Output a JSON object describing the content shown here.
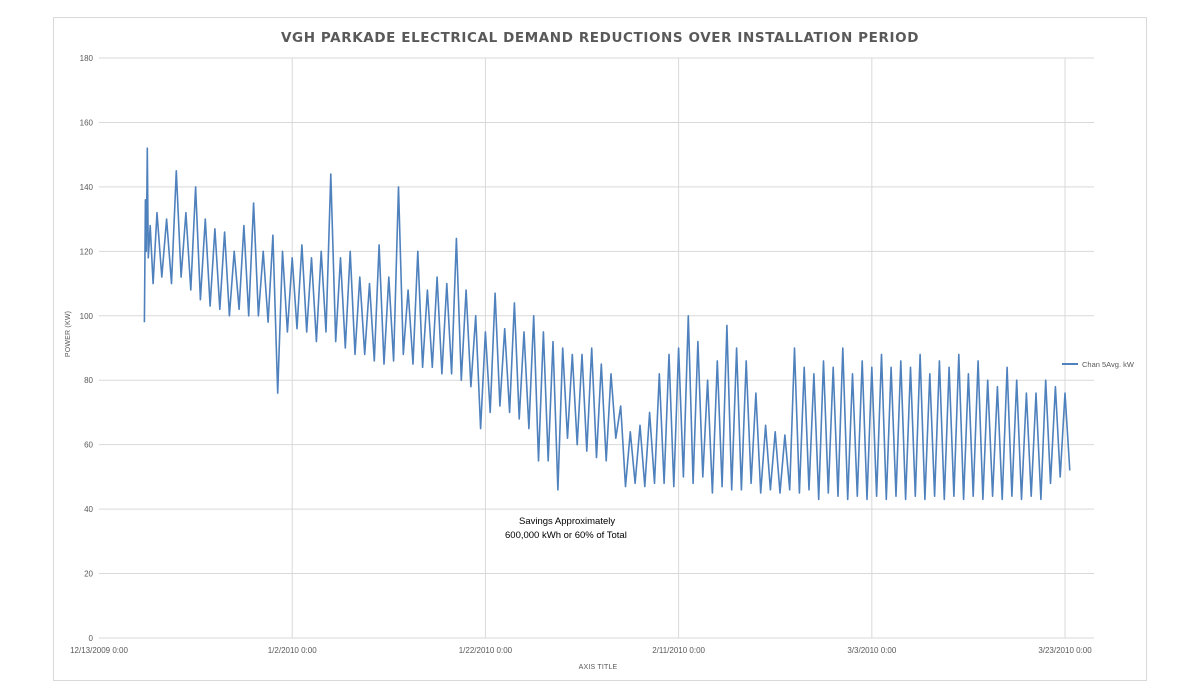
{
  "chart_data": {
    "type": "line",
    "title": "VGH PARKADE ELECTRICAL DEMAND REDUCTIONS OVER INSTALLATION PERIOD",
    "xlabel": "AXIS TITLE",
    "ylabel": "POWER (KW)",
    "x_ticks": [
      "12/13/2009 0:00",
      "1/2/2010 0:00",
      "1/22/2010 0:00",
      "2/11/2010 0:00",
      "3/3/2010 0:00",
      "3/23/2010 0:00"
    ],
    "x_tick_days": [
      0,
      20,
      40,
      60,
      80,
      100
    ],
    "xlim_days": [
      0,
      103
    ],
    "ylim": [
      0,
      180
    ],
    "y_ticks": [
      0,
      20,
      40,
      60,
      80,
      100,
      120,
      140,
      160,
      180
    ],
    "grid": true,
    "legend_position": "right",
    "series": [
      {
        "name": "Chan 5Avg. kW",
        "color": "#4f81bd",
        "points_day_kw": [
          [
            4.7,
            98
          ],
          [
            4.8,
            136
          ],
          [
            4.9,
            120
          ],
          [
            5.0,
            152
          ],
          [
            5.1,
            118
          ],
          [
            5.3,
            128
          ],
          [
            5.6,
            110
          ],
          [
            6.0,
            132
          ],
          [
            6.5,
            112
          ],
          [
            7.0,
            130
          ],
          [
            7.5,
            110
          ],
          [
            8.0,
            145
          ],
          [
            8.5,
            112
          ],
          [
            9.0,
            132
          ],
          [
            9.5,
            108
          ],
          [
            10.0,
            140
          ],
          [
            10.5,
            105
          ],
          [
            11.0,
            130
          ],
          [
            11.5,
            103
          ],
          [
            12.0,
            127
          ],
          [
            12.5,
            102
          ],
          [
            13.0,
            126
          ],
          [
            13.5,
            100
          ],
          [
            14.0,
            120
          ],
          [
            14.5,
            102
          ],
          [
            15.0,
            128
          ],
          [
            15.5,
            100
          ],
          [
            16.0,
            135
          ],
          [
            16.5,
            100
          ],
          [
            17.0,
            120
          ],
          [
            17.5,
            98
          ],
          [
            18.0,
            125
          ],
          [
            18.5,
            76
          ],
          [
            19.0,
            120
          ],
          [
            19.5,
            95
          ],
          [
            20.0,
            118
          ],
          [
            20.5,
            96
          ],
          [
            21.0,
            122
          ],
          [
            21.5,
            95
          ],
          [
            22.0,
            118
          ],
          [
            22.5,
            92
          ],
          [
            23.0,
            120
          ],
          [
            23.5,
            95
          ],
          [
            24.0,
            144
          ],
          [
            24.5,
            92
          ],
          [
            25.0,
            118
          ],
          [
            25.5,
            90
          ],
          [
            26.0,
            120
          ],
          [
            26.5,
            88
          ],
          [
            27.0,
            112
          ],
          [
            27.5,
            88
          ],
          [
            28.0,
            110
          ],
          [
            28.5,
            86
          ],
          [
            29.0,
            122
          ],
          [
            29.5,
            85
          ],
          [
            30.0,
            112
          ],
          [
            30.5,
            86
          ],
          [
            31.0,
            140
          ],
          [
            31.5,
            88
          ],
          [
            32.0,
            108
          ],
          [
            32.5,
            85
          ],
          [
            33.0,
            120
          ],
          [
            33.5,
            84
          ],
          [
            34.0,
            108
          ],
          [
            34.5,
            84
          ],
          [
            35.0,
            112
          ],
          [
            35.5,
            82
          ],
          [
            36.0,
            110
          ],
          [
            36.5,
            82
          ],
          [
            37.0,
            124
          ],
          [
            37.5,
            80
          ],
          [
            38.0,
            108
          ],
          [
            38.5,
            78
          ],
          [
            39.0,
            100
          ],
          [
            39.5,
            65
          ],
          [
            40.0,
            95
          ],
          [
            40.5,
            70
          ],
          [
            41.0,
            107
          ],
          [
            41.5,
            72
          ],
          [
            42.0,
            96
          ],
          [
            42.5,
            70
          ],
          [
            43.0,
            104
          ],
          [
            43.5,
            68
          ],
          [
            44.0,
            95
          ],
          [
            44.5,
            65
          ],
          [
            45.0,
            100
          ],
          [
            45.5,
            55
          ],
          [
            46.0,
            95
          ],
          [
            46.5,
            55
          ],
          [
            47.0,
            92
          ],
          [
            47.5,
            46
          ],
          [
            48.0,
            90
          ],
          [
            48.5,
            62
          ],
          [
            49.0,
            88
          ],
          [
            49.5,
            60
          ],
          [
            50.0,
            88
          ],
          [
            50.5,
            58
          ],
          [
            51.0,
            90
          ],
          [
            51.5,
            56
          ],
          [
            52.0,
            85
          ],
          [
            52.5,
            55
          ],
          [
            53.0,
            82
          ],
          [
            53.5,
            62
          ],
          [
            54.0,
            72
          ],
          [
            54.5,
            47
          ],
          [
            55.0,
            64
          ],
          [
            55.5,
            48
          ],
          [
            56.0,
            66
          ],
          [
            56.5,
            47
          ],
          [
            57.0,
            70
          ],
          [
            57.5,
            48
          ],
          [
            58.0,
            82
          ],
          [
            58.5,
            48
          ],
          [
            59.0,
            88
          ],
          [
            59.5,
            47
          ],
          [
            60.0,
            90
          ],
          [
            60.5,
            50
          ],
          [
            61.0,
            100
          ],
          [
            61.5,
            48
          ],
          [
            62.0,
            92
          ],
          [
            62.5,
            50
          ],
          [
            63.0,
            80
          ],
          [
            63.5,
            45
          ],
          [
            64.0,
            86
          ],
          [
            64.5,
            47
          ],
          [
            65.0,
            97
          ],
          [
            65.5,
            46
          ],
          [
            66.0,
            90
          ],
          [
            66.5,
            46
          ],
          [
            67.0,
            86
          ],
          [
            67.5,
            48
          ],
          [
            68.0,
            76
          ],
          [
            68.5,
            45
          ],
          [
            69.0,
            66
          ],
          [
            69.5,
            46
          ],
          [
            70.0,
            64
          ],
          [
            70.5,
            45
          ],
          [
            71.0,
            63
          ],
          [
            71.5,
            46
          ],
          [
            72.0,
            90
          ],
          [
            72.5,
            45
          ],
          [
            73.0,
            84
          ],
          [
            73.5,
            46
          ],
          [
            74.0,
            82
          ],
          [
            74.5,
            43
          ],
          [
            75.0,
            86
          ],
          [
            75.5,
            45
          ],
          [
            76.0,
            84
          ],
          [
            76.5,
            44
          ],
          [
            77.0,
            90
          ],
          [
            77.5,
            43
          ],
          [
            78.0,
            82
          ],
          [
            78.5,
            44
          ],
          [
            79.0,
            86
          ],
          [
            79.5,
            43
          ],
          [
            80.0,
            84
          ],
          [
            80.5,
            44
          ],
          [
            81.0,
            88
          ],
          [
            81.5,
            43
          ],
          [
            82.0,
            84
          ],
          [
            82.5,
            44
          ],
          [
            83.0,
            86
          ],
          [
            83.5,
            43
          ],
          [
            84.0,
            84
          ],
          [
            84.5,
            44
          ],
          [
            85.0,
            88
          ],
          [
            85.5,
            43
          ],
          [
            86.0,
            82
          ],
          [
            86.5,
            44
          ],
          [
            87.0,
            86
          ],
          [
            87.5,
            43
          ],
          [
            88.0,
            84
          ],
          [
            88.5,
            44
          ],
          [
            89.0,
            88
          ],
          [
            89.5,
            43
          ],
          [
            90.0,
            82
          ],
          [
            90.5,
            44
          ],
          [
            91.0,
            86
          ],
          [
            91.5,
            43
          ],
          [
            92.0,
            80
          ],
          [
            92.5,
            44
          ],
          [
            93.0,
            78
          ],
          [
            93.5,
            43
          ],
          [
            94.0,
            84
          ],
          [
            94.5,
            44
          ],
          [
            95.0,
            80
          ],
          [
            95.5,
            43
          ],
          [
            96.0,
            76
          ],
          [
            96.5,
            44
          ],
          [
            97.0,
            76
          ],
          [
            97.5,
            43
          ],
          [
            98.0,
            80
          ],
          [
            98.5,
            48
          ],
          [
            99.0,
            78
          ],
          [
            99.5,
            50
          ],
          [
            100.0,
            76
          ],
          [
            100.5,
            52
          ]
        ]
      }
    ],
    "annotation": {
      "line1": "Savings Approximately",
      "line2": "600,000 kWh or 60% of Total"
    }
  }
}
